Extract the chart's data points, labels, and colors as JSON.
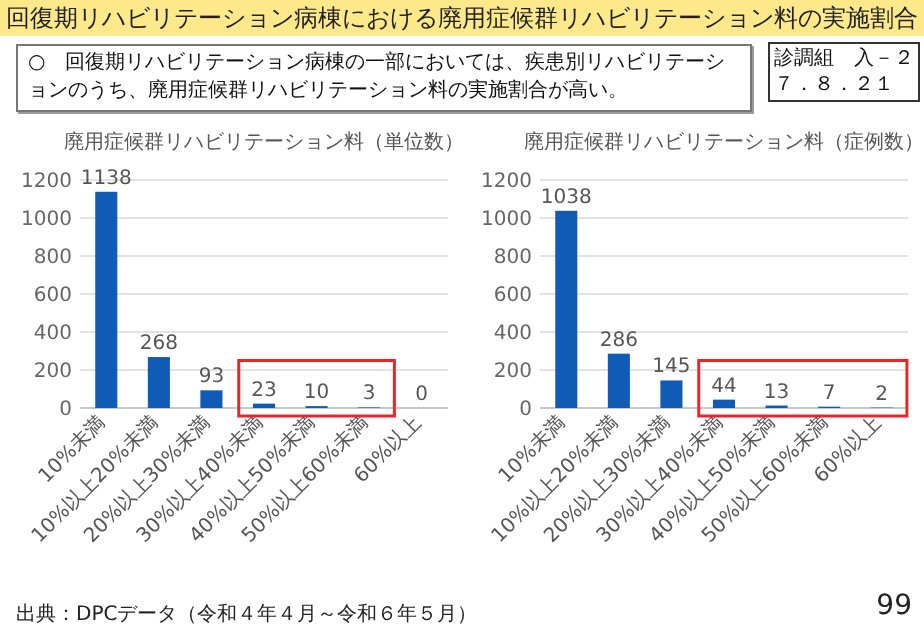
{
  "chart_data": [
    {
      "type": "other",
      "title": "回復期リハビリテーション病棟における廃用症候群リハビリテーション料の実施割合",
      "annotations": [
        "○　回復期リハビリテーション病棟の一部においては、疾患別リハビリテーションのうち、廃用症候群リハビリテーション料の実施割合が高い。",
        "診調組　入－２",
        "７．８．２１",
        "出典：DPCデータ（令和４年４月～令和６年５月）",
        "99"
      ]
    },
    {
      "type": "bar",
      "title": "廃用症候群リハビリテーション料（単位数）",
      "categories": [
        "10%未満",
        "10%以上20%未満",
        "20%以上30%未満",
        "30%以上40%未満",
        "40%以上50%未満",
        "50%以上60%未満",
        "60%以上"
      ],
      "values": [
        1138,
        268,
        93,
        23,
        10,
        3,
        0
      ],
      "color": "#0f5bb5",
      "ylim": [
        0,
        1200
      ],
      "yticks": [
        0,
        200,
        400,
        600,
        800,
        1000,
        1200
      ],
      "grid": "y",
      "data_labels": true
    },
    {
      "type": "bar",
      "title": "廃用症候群リハビリテーション料（症例数）",
      "categories": [
        "10%未満",
        "10%以上20%未満",
        "20%以上30%未満",
        "30%以上40%未満",
        "40%以上50%未満",
        "50%以上60%未満",
        "60%以上"
      ],
      "values": [
        1038,
        286,
        145,
        44,
        13,
        7,
        2
      ],
      "color": "#0f5bb5",
      "ylim": [
        0,
        1200
      ],
      "yticks": [
        0,
        200,
        400,
        600,
        800,
        1000,
        1200
      ],
      "grid": "y",
      "data_labels": true
    }
  ]
}
